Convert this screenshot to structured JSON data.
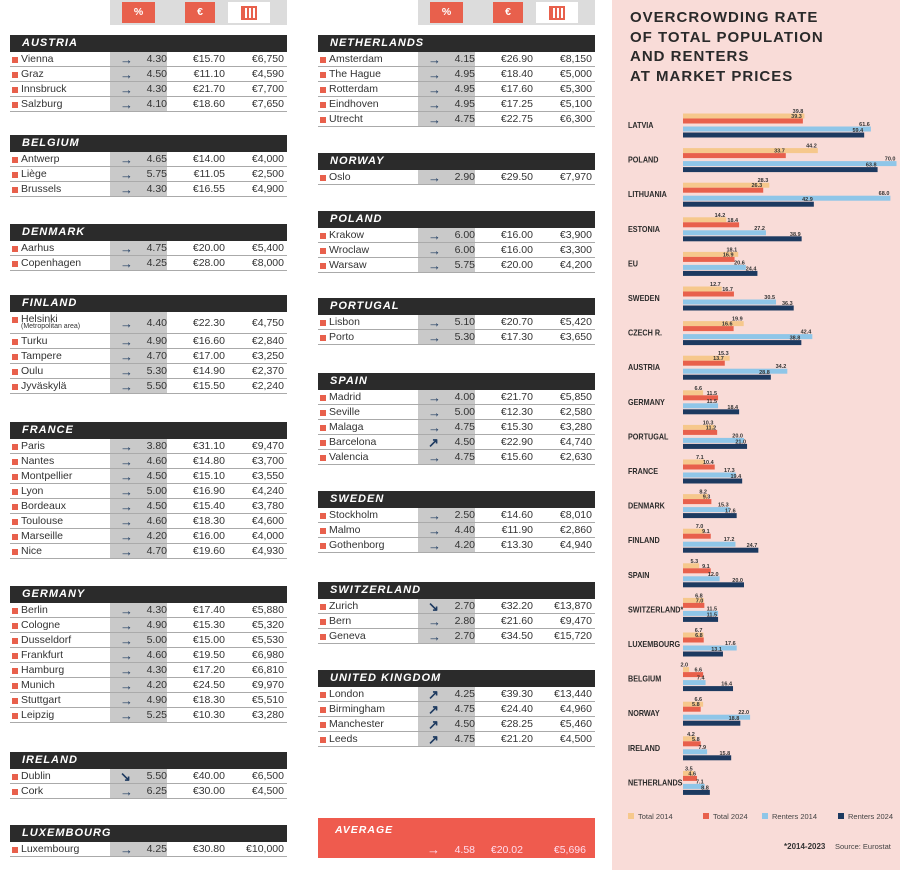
{
  "table": {
    "columns": [
      "%",
      "€"
    ],
    "left": [
      {
        "country": "AUSTRIA",
        "rows": [
          [
            "Vienna",
            "→",
            "4.30",
            "€15.70",
            "€6,750"
          ],
          [
            "Graz",
            "→",
            "4.50",
            "€11.10",
            "€4,590"
          ],
          [
            "Innsbruck",
            "→",
            "4.30",
            "€21.70",
            "€7,700"
          ],
          [
            "Salzburg",
            "→",
            "4.10",
            "€18.60",
            "€7,650"
          ]
        ]
      },
      {
        "country": "BELGIUM",
        "rows": [
          [
            "Antwerp",
            "→",
            "4.65",
            "€14.00",
            "€4,000"
          ],
          [
            "Liège",
            "→",
            "5.75",
            "€11.05",
            "€2,500"
          ],
          [
            "Brussels",
            "→",
            "4.30",
            "€16.55",
            "€4,900"
          ]
        ]
      },
      {
        "country": "DENMARK",
        "rows": [
          [
            "Aarhus",
            "→",
            "4.75",
            "€20.00",
            "€5,400"
          ],
          [
            "Copenhagen",
            "→",
            "4.25",
            "€28.00",
            "€8,000"
          ]
        ]
      },
      {
        "country": "FINLAND",
        "rows": [
          [
            "Helsinki",
            "→",
            "4.40",
            "€22.30",
            "€4,750",
            "(Metropolitan area)"
          ],
          [
            "Turku",
            "→",
            "4.90",
            "€16.60",
            "€2,840"
          ],
          [
            "Tampere",
            "→",
            "4.70",
            "€17.00",
            "€3,250"
          ],
          [
            "Oulu",
            "→",
            "5.30",
            "€14.90",
            "€2,370"
          ],
          [
            "Jyväskylä",
            "→",
            "5.50",
            "€15.50",
            "€2,240"
          ]
        ]
      },
      {
        "country": "FRANCE",
        "rows": [
          [
            "Paris",
            "→",
            "3.80",
            "€31.10",
            "€9,470"
          ],
          [
            "Nantes",
            "→",
            "4.60",
            "€14.80",
            "€3,700"
          ],
          [
            "Montpellier",
            "→",
            "4.50",
            "€15.10",
            "€3,550"
          ],
          [
            "Lyon",
            "→",
            "5.00",
            "€16.90",
            "€4,240"
          ],
          [
            "Bordeaux",
            "→",
            "4.50",
            "€15.40",
            "€3,780"
          ],
          [
            "Toulouse",
            "→",
            "4.60",
            "€18.30",
            "€4,600"
          ],
          [
            "Marseille",
            "→",
            "4.20",
            "€16.00",
            "€4,000"
          ],
          [
            "Nice",
            "→",
            "4.70",
            "€19.60",
            "€4,930"
          ]
        ]
      },
      {
        "country": "GERMANY",
        "rows": [
          [
            "Berlin",
            "→",
            "4.30",
            "€17.40",
            "€5,880"
          ],
          [
            "Cologne",
            "→",
            "4.90",
            "€15.30",
            "€5,320"
          ],
          [
            "Dusseldorf",
            "→",
            "5.00",
            "€15.00",
            "€5,530"
          ],
          [
            "Frankfurt",
            "→",
            "4.60",
            "€19.50",
            "€6,980"
          ],
          [
            "Hamburg",
            "→",
            "4.30",
            "€17.20",
            "€6,810"
          ],
          [
            "Munich",
            "→",
            "4.20",
            "€24.50",
            "€9,970"
          ],
          [
            "Stuttgart",
            "→",
            "4.90",
            "€18.30",
            "€5,510"
          ],
          [
            "Leipzig",
            "→",
            "5.25",
            "€10.30",
            "€3,280"
          ]
        ]
      },
      {
        "country": "IRELAND",
        "rows": [
          [
            "Dublin",
            "↘",
            "5.50",
            "€40.00",
            "€6,500"
          ],
          [
            "Cork",
            "→",
            "6.25",
            "€30.00",
            "€4,500"
          ]
        ]
      },
      {
        "country": "LUXEMBOURG",
        "rows": [
          [
            "Luxembourg",
            "→",
            "4.25",
            "€30.80",
            "€10,000"
          ]
        ]
      }
    ],
    "right": [
      {
        "country": "NETHERLANDS",
        "rows": [
          [
            "Amsterdam",
            "→",
            "4.15",
            "€26.90",
            "€8,150"
          ],
          [
            "The Hague",
            "→",
            "4.95",
            "€18.40",
            "€5,000"
          ],
          [
            "Rotterdam",
            "→",
            "4.95",
            "€17.60",
            "€5,300"
          ],
          [
            "Eindhoven",
            "→",
            "4.95",
            "€17.25",
            "€5,100"
          ],
          [
            "Utrecht",
            "→",
            "4.75",
            "€22.75",
            "€6,300"
          ]
        ]
      },
      {
        "country": "NORWAY",
        "rows": [
          [
            "Oslo",
            "→",
            "2.90",
            "€29.50",
            "€7,970"
          ]
        ]
      },
      {
        "country": "POLAND",
        "rows": [
          [
            "Krakow",
            "→",
            "6.00",
            "€16.00",
            "€3,900"
          ],
          [
            "Wroclaw",
            "→",
            "6.00",
            "€16.00",
            "€3,300"
          ],
          [
            "Warsaw",
            "→",
            "5.75",
            "€20.00",
            "€4,200"
          ]
        ]
      },
      {
        "country": "PORTUGAL",
        "rows": [
          [
            "Lisbon",
            "→",
            "5.10",
            "€20.70",
            "€5,420"
          ],
          [
            "Porto",
            "→",
            "5.30",
            "€17.30",
            "€3,650"
          ]
        ]
      },
      {
        "country": "SPAIN",
        "rows": [
          [
            "Madrid",
            "→",
            "4.00",
            "€21.70",
            "€5,850"
          ],
          [
            "Seville",
            "→",
            "5.00",
            "€12.30",
            "€2,580"
          ],
          [
            "Malaga",
            "→",
            "4.75",
            "€15.30",
            "€3,280"
          ],
          [
            "Barcelona",
            "↗",
            "4.50",
            "€22.90",
            "€4,740"
          ],
          [
            "Valencia",
            "→",
            "4.75",
            "€15.60",
            "€2,630"
          ]
        ]
      },
      {
        "country": "SWEDEN",
        "rows": [
          [
            "Stockholm",
            "→",
            "2.50",
            "€14.60",
            "€8,010"
          ],
          [
            "Malmo",
            "→",
            "4.40",
            "€11.90",
            "€2,860"
          ],
          [
            "Gothenborg",
            "→",
            "4.20",
            "€13.30",
            "€4,940"
          ]
        ]
      },
      {
        "country": "SWITZERLAND",
        "rows": [
          [
            "Zurich",
            "↘",
            "2.70",
            "€32.20",
            "€13,870"
          ],
          [
            "Bern",
            "→",
            "2.80",
            "€21.60",
            "€9,470"
          ],
          [
            "Geneva",
            "→",
            "2.70",
            "€34.50",
            "€15,720"
          ]
        ]
      },
      {
        "country": "UNITED KINGDOM",
        "rows": [
          [
            "London",
            "↗",
            "4.25",
            "€39.30",
            "€13,440"
          ],
          [
            "Birmingham",
            "↗",
            "4.75",
            "€24.40",
            "€4,960"
          ],
          [
            "Manchester",
            "↗",
            "4.50",
            "€28.25",
            "€5,460"
          ],
          [
            "Leeds",
            "↗",
            "4.75",
            "€21.20",
            "€4,500"
          ]
        ]
      }
    ],
    "average": {
      "label": "AVERAGE",
      "trend": "→",
      "yield": "4.58",
      "rent": "€20.02",
      "price": "€5,696"
    }
  },
  "chart_data": {
    "type": "barh",
    "title": [
      "OVERCROWDING RATE",
      "OF TOTAL POPULATION",
      "AND RENTERS",
      "AT MARKET PRICES"
    ],
    "categories": [
      "LATVIA",
      "POLAND",
      "LITHUANIA",
      "ESTONIA",
      "EU",
      "SWEDEN",
      "CZECH R.",
      "AUSTRIA",
      "GERMANY",
      "PORTUGAL",
      "FRANCE",
      "DENMARK",
      "FINLAND",
      "SPAIN",
      "SWITZERLAND*",
      "LUXEMBOURG",
      "BELGIUM",
      "NORWAY",
      "IRELAND",
      "NETHERLANDS"
    ],
    "series": [
      {
        "name": "Total 2014",
        "color": "#f6c88c",
        "values": [
          39.8,
          44.2,
          28.3,
          14.2,
          18.1,
          12.7,
          19.9,
          15.3,
          6.6,
          10.3,
          7.1,
          8.2,
          7.0,
          5.3,
          6.8,
          6.7,
          2.0,
          6.6,
          4.2,
          3.5
        ],
        "value_labels": [
          "39.8",
          "44.2",
          "28.3",
          "14.2",
          "18.1",
          "12.7",
          "19.9",
          "15.3",
          "6.6",
          "10.3",
          "7.1",
          "8.2",
          "7.0",
          "5.3",
          "6.8",
          "6.7",
          "2.0",
          "6.6",
          "4.2",
          "3.5"
        ]
      },
      {
        "name": "Total 2024",
        "color": "#e8604c",
        "values": [
          39.3,
          33.7,
          26.3,
          18.4,
          16.9,
          16.7,
          16.6,
          13.7,
          11.5,
          11.2,
          10.4,
          9.3,
          9.1,
          9.1,
          7.0,
          6.8,
          6.6,
          5.8,
          5.8,
          4.6
        ],
        "value_labels": [
          "39.3",
          "33.7",
          "26.3",
          "18.4",
          "16.9",
          "16.7",
          "16.6",
          "13.7",
          "11.5",
          "11.2",
          "10.4",
          "9.3",
          "9.1",
          "9.1",
          "7.0",
          "6.8",
          "6.6",
          "5.8",
          "5.8",
          "4.6"
        ]
      },
      {
        "name": "Renters 2014",
        "color": "#8fc6e8",
        "values": [
          61.6,
          70.0,
          68.0,
          27.2,
          20.6,
          30.5,
          42.4,
          34.2,
          11.5,
          20.0,
          17.3,
          15.3,
          17.2,
          12.0,
          11.5,
          17.6,
          7.4,
          22.0,
          7.9,
          7.1
        ],
        "value_labels": [
          "61.6",
          "70.0",
          "68.0",
          "27.2",
          "20.6",
          "30.5",
          "42.4",
          "34.2",
          "11.5",
          "20.0",
          "17.3",
          "15.3",
          "17.2",
          "12.0",
          "11.5",
          "17.6",
          "7.4",
          "22.0",
          "7.9",
          "7.1"
        ]
      },
      {
        "name": "Renters 2024",
        "color": "#1d3a60",
        "values": [
          59.4,
          63.8,
          42.9,
          38.9,
          24.4,
          36.3,
          38.8,
          28.8,
          18.4,
          21.0,
          19.4,
          17.6,
          24.7,
          20.0,
          11.5,
          13.1,
          16.4,
          18.8,
          15.8,
          8.8
        ],
        "value_labels": [
          "59.4",
          "63.8",
          "42.9",
          "38.9",
          "24.4",
          "36.3",
          "38.8",
          "28.8",
          "18.4",
          "21.0",
          "19.4",
          "17.6",
          "24.7",
          "20.0",
          "11.5",
          "13.1",
          "16.4",
          "18.8",
          "15.8",
          "8.8"
        ]
      }
    ],
    "footnote": "*2014-2023",
    "source": "Source: Eurostat"
  }
}
